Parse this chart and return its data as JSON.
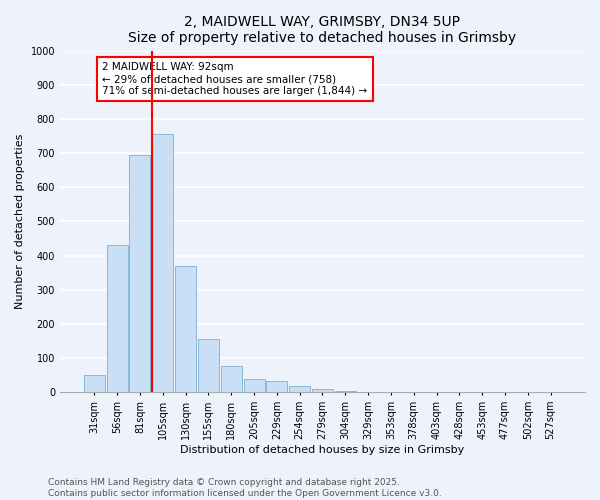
{
  "title": "2, MAIDWELL WAY, GRIMSBY, DN34 5UP",
  "subtitle": "Size of property relative to detached houses in Grimsby",
  "xlabel": "Distribution of detached houses by size in Grimsby",
  "ylabel": "Number of detached properties",
  "bar_labels": [
    "31sqm",
    "56sqm",
    "81sqm",
    "105sqm",
    "130sqm",
    "155sqm",
    "180sqm",
    "205sqm",
    "229sqm",
    "254sqm",
    "279sqm",
    "304sqm",
    "329sqm",
    "353sqm",
    "378sqm",
    "403sqm",
    "428sqm",
    "453sqm",
    "477sqm",
    "502sqm",
    "527sqm"
  ],
  "bar_values": [
    52,
    430,
    693,
    757,
    370,
    157,
    77,
    40,
    33,
    17,
    11,
    5,
    2,
    1,
    0,
    0,
    0,
    0,
    0,
    0,
    0
  ],
  "bar_color": "#c9dff5",
  "bar_edge_color": "#7bafd4",
  "vline_color": "red",
  "vline_pos": 2.55,
  "annotation_title": "2 MAIDWELL WAY: 92sqm",
  "annotation_line1": "← 29% of detached houses are smaller (758)",
  "annotation_line2": "71% of semi-detached houses are larger (1,844) →",
  "annotation_box_facecolor": "white",
  "annotation_box_edgecolor": "red",
  "ylim": [
    0,
    1000
  ],
  "yticks": [
    0,
    100,
    200,
    300,
    400,
    500,
    600,
    700,
    800,
    900,
    1000
  ],
  "footer_line1": "Contains HM Land Registry data © Crown copyright and database right 2025.",
  "footer_line2": "Contains public sector information licensed under the Open Government Licence v3.0.",
  "background_color": "#eef2fb",
  "grid_color": "#ffffff",
  "title_fontsize": 10,
  "axis_label_fontsize": 8,
  "tick_fontsize": 7,
  "footer_fontsize": 6.5,
  "annotation_fontsize": 7.5
}
